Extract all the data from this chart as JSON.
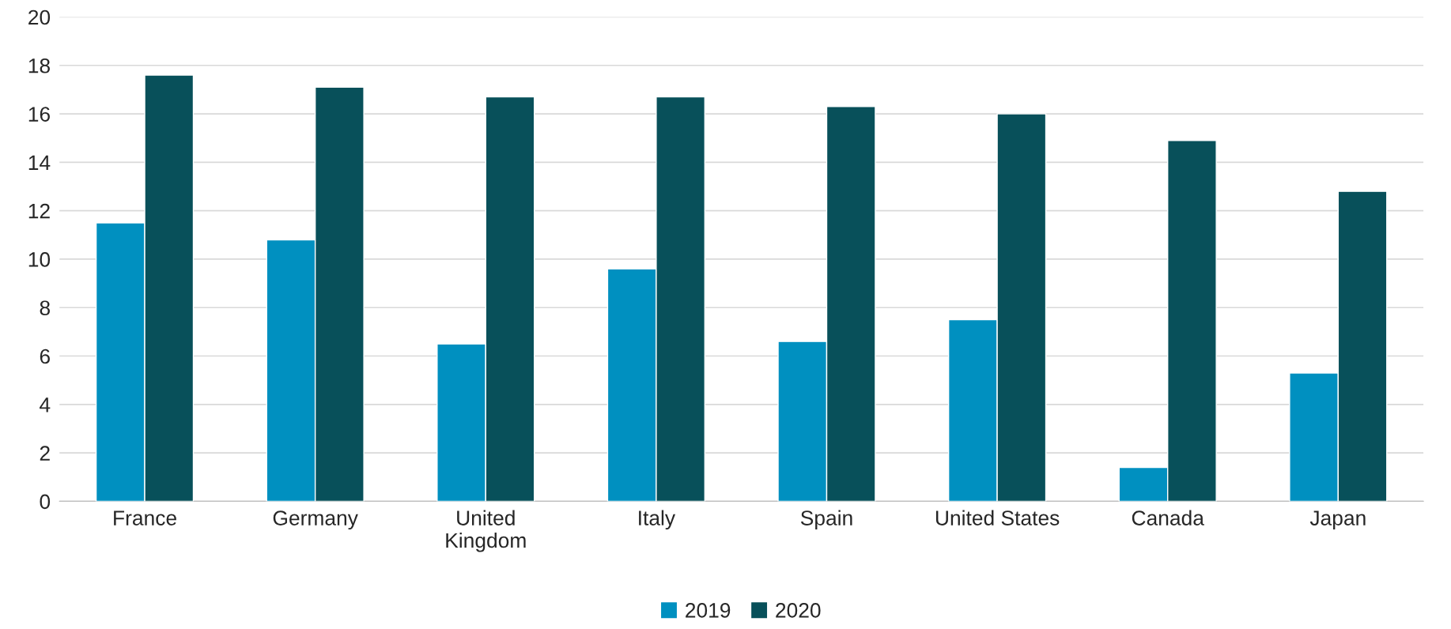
{
  "chart_data": {
    "type": "bar",
    "categories": [
      "France",
      "Germany",
      "United\nKingdom",
      "Italy",
      "Spain",
      "United States",
      "Canada",
      "Japan"
    ],
    "series": [
      {
        "name": "2019",
        "color": "#0090c0",
        "values": [
          11.5,
          10.8,
          6.5,
          9.6,
          6.6,
          7.5,
          1.4,
          5.3
        ]
      },
      {
        "name": "2020",
        "color": "#08505a",
        "values": [
          17.6,
          17.1,
          16.7,
          16.7,
          16.3,
          16.0,
          14.9,
          12.8
        ]
      }
    ],
    "ylim": [
      0,
      20
    ],
    "yticks": [
      0,
      2,
      4,
      6,
      8,
      10,
      12,
      14,
      16,
      18,
      20
    ],
    "grid": "y",
    "legend": "bottom"
  }
}
